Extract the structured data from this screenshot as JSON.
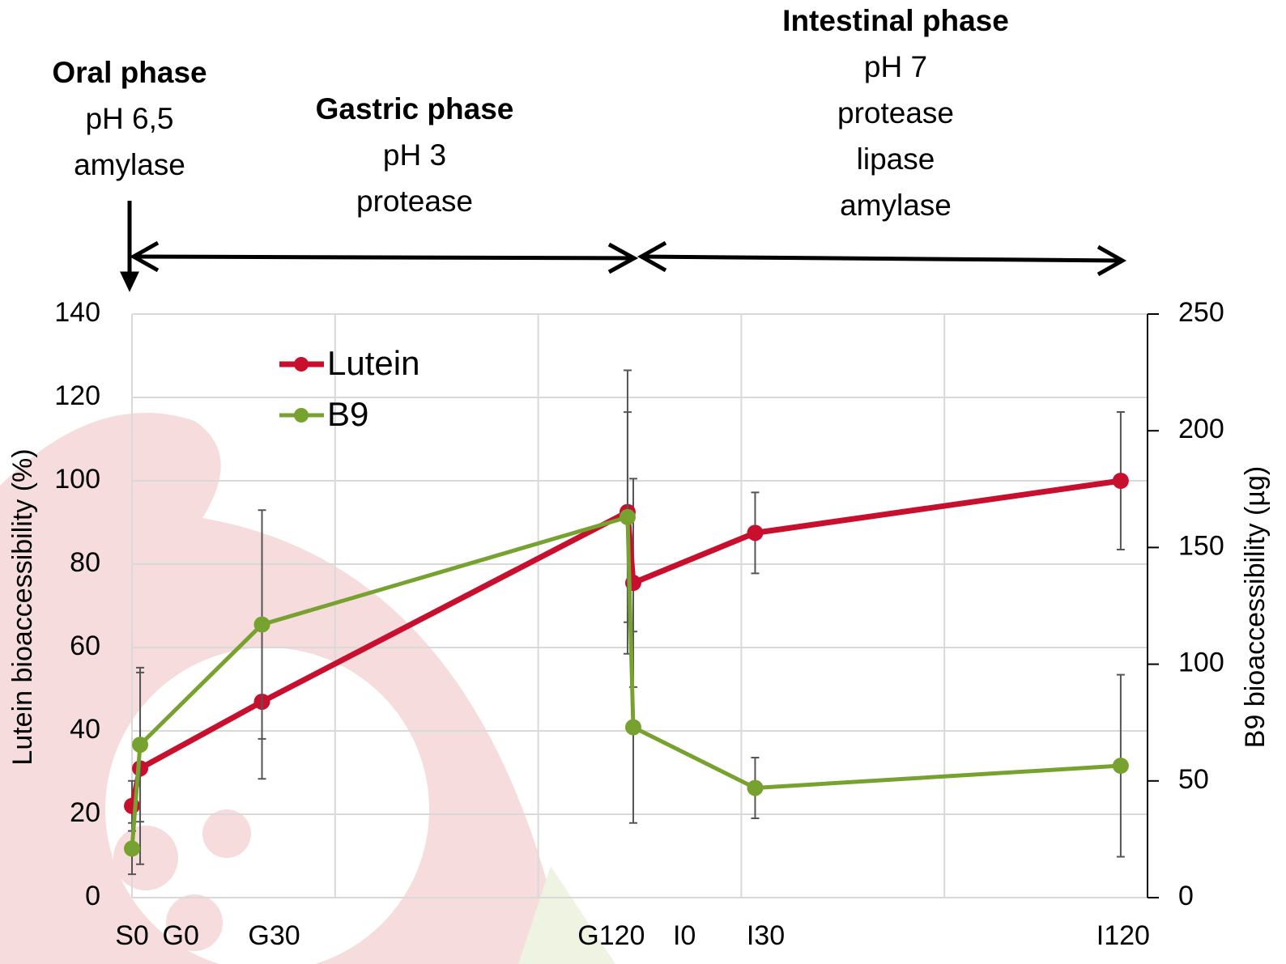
{
  "chart_data": {
    "type": "line",
    "y_label": "Lutein bioaccessibility (%)",
    "y2_label": "B9 bioaccessibility (µg)",
    "x": [
      0,
      2,
      32,
      122,
      123.4,
      153.4,
      243.4
    ],
    "xlim": [
      0,
      250
    ],
    "xgrid": [
      0,
      50,
      100,
      150,
      200,
      250
    ],
    "xticks": [
      {
        "value": 0,
        "label": "S0"
      },
      {
        "value": 12,
        "label": "G0"
      },
      {
        "value": 35,
        "label": "G30"
      },
      {
        "value": 118,
        "label": "G120"
      },
      {
        "value": 136,
        "label": "I0"
      },
      {
        "value": 156,
        "label": "I30"
      },
      {
        "value": 244,
        "label": "I120"
      }
    ],
    "ylim": [
      0,
      140
    ],
    "yticks": [
      0,
      20,
      40,
      60,
      80,
      100,
      120,
      140
    ],
    "y2lim": [
      0,
      250
    ],
    "y2ticks": [
      0,
      50,
      100,
      150,
      200,
      250
    ],
    "grid": true,
    "legend": "upper left",
    "series": [
      {
        "name": "Lutein",
        "color": "#c8102e",
        "values": [
          22,
          31,
          47,
          92.5,
          75.5,
          87.5,
          100
        ],
        "errors": [
          6,
          23,
          18.5,
          34,
          25,
          9.7,
          16.5
        ]
      },
      {
        "name": "B9",
        "color": "#77a22f",
        "axis": "y2",
        "values": [
          21,
          65.5,
          117,
          163,
          73,
          47,
          56.5
        ],
        "errors": [
          11,
          33,
          49,
          45,
          41,
          13,
          39
        ]
      }
    ],
    "annotations": [
      {
        "title": "Oral phase",
        "lines": [
          "pH 6,5",
          "amylase"
        ]
      },
      {
        "title": "Gastric phase",
        "lines": [
          "pH 3",
          "protease"
        ]
      },
      {
        "title": "Intestinal phase",
        "lines": [
          "pH 7",
          "protease",
          "lipase",
          "amylase"
        ]
      }
    ]
  }
}
